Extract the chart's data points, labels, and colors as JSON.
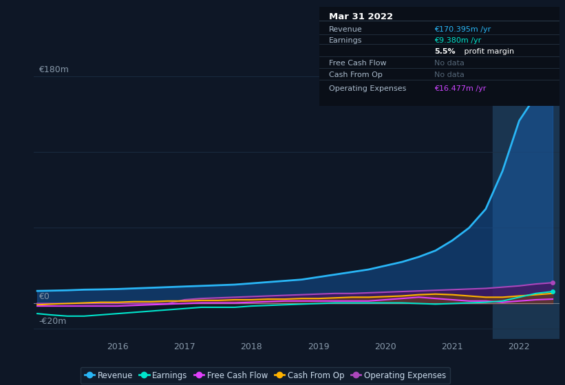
{
  "bg_color": "#0e1726",
  "plot_bg_color": "#0e1726",
  "grid_color": "#1c2e45",
  "xlim": [
    2014.75,
    2022.6
  ],
  "ylim": [
    -28,
    195
  ],
  "xticks": [
    2016,
    2017,
    2018,
    2019,
    2020,
    2021,
    2022
  ],
  "highlight_x_start": 2021.6,
  "highlight_x_end": 2022.6,
  "highlight_color": "#1a3550",
  "zero_line_color": "#c8d0d8",
  "x": [
    2014.8,
    2015.0,
    2015.25,
    2015.5,
    2015.75,
    2016.0,
    2016.25,
    2016.5,
    2016.75,
    2017.0,
    2017.25,
    2017.5,
    2017.75,
    2018.0,
    2018.25,
    2018.5,
    2018.75,
    2019.0,
    2019.25,
    2019.5,
    2019.75,
    2020.0,
    2020.25,
    2020.5,
    2020.75,
    2021.0,
    2021.25,
    2021.5,
    2021.75,
    2022.0,
    2022.25,
    2022.5
  ],
  "revenue": [
    10,
    10.2,
    10.5,
    11,
    11.2,
    11.5,
    12,
    12.5,
    13,
    13.5,
    14,
    14.5,
    15,
    16,
    17,
    18,
    19,
    21,
    23,
    25,
    27,
    30,
    33,
    37,
    42,
    50,
    60,
    75,
    105,
    145,
    165,
    172
  ],
  "earnings": [
    -8,
    -9,
    -10,
    -10,
    -9,
    -8,
    -7,
    -6,
    -5,
    -4,
    -3,
    -3,
    -3,
    -2,
    -1.5,
    -1,
    -0.5,
    0,
    0.5,
    0.5,
    0.5,
    0.5,
    0.5,
    0,
    -0.5,
    0,
    0.5,
    1,
    2,
    5,
    8,
    9.5
  ],
  "fcf": [
    -2,
    -2,
    -2,
    -2,
    -2,
    -2,
    -1.5,
    -1,
    -0.5,
    0,
    0.5,
    0.5,
    0.5,
    1,
    1.5,
    2,
    2,
    2,
    2,
    2,
    2,
    3,
    4,
    5,
    4,
    3,
    2,
    2,
    1,
    2,
    3,
    3.5
  ],
  "cashfromop": [
    -1,
    -0.5,
    0,
    0.5,
    1,
    1,
    1.5,
    1.5,
    2,
    2,
    2.5,
    2.5,
    3,
    3,
    3.5,
    3.5,
    4,
    4,
    4.5,
    5,
    5,
    5.5,
    6,
    7,
    7.5,
    7,
    6,
    5,
    5,
    6,
    7,
    8
  ],
  "opex": [
    0,
    0,
    0,
    0,
    0,
    0,
    0,
    0,
    0,
    3,
    4,
    4.5,
    5,
    5.5,
    6,
    6.5,
    7,
    7.5,
    8,
    8,
    8.5,
    9,
    9.5,
    10,
    10.5,
    11,
    11.5,
    12,
    13,
    14,
    15.5,
    16.5
  ],
  "revenue_color": "#29b6f6",
  "earnings_color": "#00e5cc",
  "fcf_color": "#e040fb",
  "cashfromop_color": "#ffb300",
  "opex_color": "#ab47bc",
  "revenue_fill": "#1565c0",
  "opex_fill": "#4a1060",
  "cashfromop_fill": "#7a4400",
  "label_180": "€180m",
  "label_0": "€0",
  "label_neg20": "-€20m",
  "info_title": "Mar 31 2022",
  "info_rows": [
    {
      "label": "Revenue",
      "value": "€170.395m /yr",
      "vcolor": "#29b6f6",
      "dim": false
    },
    {
      "label": "Earnings",
      "value": "€9.380m /yr",
      "vcolor": "#00e5cc",
      "dim": false
    },
    {
      "label": "",
      "value": "5.5% profit margin",
      "vcolor": "#ffffff",
      "dim": false,
      "bold_prefix": "5.5%"
    },
    {
      "label": "Free Cash Flow",
      "value": "No data",
      "vcolor": "#556677",
      "dim": true
    },
    {
      "label": "Cash From Op",
      "value": "No data",
      "vcolor": "#556677",
      "dim": true
    },
    {
      "label": "Operating Expenses",
      "value": "€16.477m /yr",
      "vcolor": "#cc44ff",
      "dim": false
    }
  ],
  "legend": [
    {
      "label": "Revenue",
      "color": "#29b6f6"
    },
    {
      "label": "Earnings",
      "color": "#00e5cc"
    },
    {
      "label": "Free Cash Flow",
      "color": "#e040fb"
    },
    {
      "label": "Cash From Op",
      "color": "#ffb300"
    },
    {
      "label": "Operating Expenses",
      "color": "#ab47bc"
    }
  ]
}
